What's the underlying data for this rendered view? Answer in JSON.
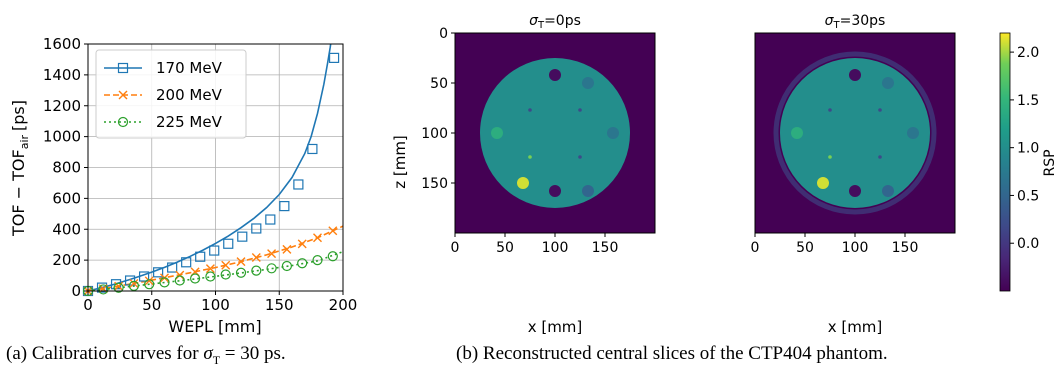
{
  "chart_data": [
    {
      "type": "line",
      "panel": "a",
      "xlabel": "WEPL [mm]",
      "ylabel_main": "TOF − TOF",
      "ylabel_sub": "air",
      "ylabel_unit": "[ps]",
      "xlim": [
        0,
        200
      ],
      "ylim": [
        0,
        1600
      ],
      "xticks": [
        0,
        50,
        100,
        150,
        200
      ],
      "yticks": [
        0,
        200,
        400,
        600,
        800,
        1000,
        1200,
        1400,
        1600
      ],
      "grid": true,
      "legend_position": "top-left",
      "series": [
        {
          "name": "170 MeV",
          "color": "#1f77b4",
          "line_style": "solid",
          "marker": "square",
          "curve_x": [
            0,
            10,
            20,
            30,
            40,
            50,
            60,
            70,
            80,
            90,
            100,
            110,
            120,
            130,
            140,
            150,
            160,
            170,
            175,
            180,
            185,
            188,
            190,
            192
          ],
          "curve_y": [
            0,
            20,
            42,
            67,
            94,
            122,
            153,
            187,
            224,
            264,
            308,
            356,
            410,
            470,
            540,
            625,
            735,
            890,
            1000,
            1150,
            1340,
            1480,
            1580,
            1700
          ],
          "marker_x": [
            0,
            11,
            22,
            33,
            44,
            55,
            66,
            77,
            88,
            99,
            110,
            121,
            132,
            143,
            154,
            165,
            176,
            193
          ],
          "marker_y": [
            0,
            22,
            44,
            68,
            94,
            121,
            152,
            186,
            222,
            262,
            306,
            352,
            405,
            463,
            550,
            690,
            920,
            1510
          ]
        },
        {
          "name": "200 MeV",
          "color": "#ff7f0e",
          "line_style": "dashed",
          "marker": "x",
          "curve_x": [
            0,
            20,
            40,
            60,
            80,
            100,
            120,
            140,
            160,
            180,
            200
          ],
          "curve_y": [
            0,
            26,
            55,
            86,
            118,
            152,
            190,
            234,
            285,
            345,
            420
          ],
          "marker_x": [
            0,
            12,
            24,
            36,
            48,
            60,
            72,
            84,
            96,
            108,
            120,
            132,
            144,
            156,
            168,
            180,
            192
          ],
          "marker_y": [
            0,
            15,
            31,
            49,
            66,
            85,
            103,
            124,
            145,
            167,
            190,
            217,
            242,
            270,
            305,
            345,
            390
          ]
        },
        {
          "name": "225 MeV",
          "color": "#2ca02c",
          "line_style": "dotted",
          "marker": "circle",
          "curve_x": [
            0,
            20,
            40,
            60,
            80,
            100,
            120,
            140,
            160,
            180,
            200
          ],
          "curve_y": [
            0,
            17,
            36,
            55,
            74,
            95,
            117,
            140,
            165,
            195,
            255
          ],
          "marker_x": [
            0,
            12,
            24,
            36,
            48,
            60,
            72,
            84,
            96,
            108,
            120,
            132,
            144,
            156,
            168,
            180,
            192
          ],
          "marker_y": [
            0,
            10,
            21,
            33,
            44,
            56,
            68,
            81,
            94,
            107,
            118,
            132,
            147,
            162,
            180,
            200,
            225
          ]
        }
      ]
    },
    {
      "type": "heatmap",
      "panel": "b",
      "colorbar_label": "RSP",
      "colorbar_ticks": [
        0.0,
        0.5,
        1.0,
        1.5,
        2.0
      ],
      "colorbar_tick_labels": [
        "0.0",
        "0.5",
        "1.0",
        "1.5",
        "2.0"
      ],
      "colorbar_range": [
        -0.5,
        2.2
      ],
      "colormap": "viridis",
      "images": [
        {
          "title_prefix": "σ",
          "title_sub": "T",
          "title_suffix": "=0ps",
          "xlabel": "x [mm]",
          "ylabel": "z [mm]",
          "xlim": [
            0,
            200
          ],
          "ylim": [
            200,
            0
          ],
          "xticks": [
            0,
            50,
            100,
            150
          ],
          "yticks": [
            0,
            50,
            100,
            150
          ],
          "background_rsp": -0.5,
          "phantom": {
            "cx": 100,
            "cz": 100,
            "r": 75,
            "rsp": 1.0
          },
          "inserts": [
            {
              "cx": 100,
              "cz": 42,
              "r": 6,
              "rsp": -0.4
            },
            {
              "cx": 133,
              "cz": 50,
              "r": 6,
              "rsp": 0.7
            },
            {
              "cx": 158,
              "cz": 100,
              "r": 6,
              "rsp": 0.7
            },
            {
              "cx": 133,
              "cz": 158,
              "r": 6,
              "rsp": 0.5
            },
            {
              "cx": 100,
              "cz": 158,
              "r": 6,
              "rsp": -0.4
            },
            {
              "cx": 68,
              "cz": 150,
              "r": 6,
              "rsp": 2.1
            },
            {
              "cx": 42,
              "cz": 100,
              "r": 6,
              "rsp": 1.4
            },
            {
              "cx": 75,
              "cz": 77,
              "r": 1.8,
              "rsp": 0.2
            },
            {
              "cx": 125,
              "cz": 77,
              "r": 1.8,
              "rsp": 0.2
            },
            {
              "cx": 125,
              "cz": 124,
              "r": 1.8,
              "rsp": 0.2
            },
            {
              "cx": 75,
              "cz": 124,
              "r": 1.8,
              "rsp": 1.9
            }
          ]
        },
        {
          "title_prefix": "σ",
          "title_sub": "T",
          "title_suffix": "=30ps",
          "xlabel": "x [mm]",
          "xlim": [
            0,
            200
          ],
          "xticks": [
            0,
            50,
            100,
            150
          ],
          "background_rsp": -0.5,
          "ring_artifact": true,
          "phantom": {
            "cx": 100,
            "cz": 100,
            "r": 75,
            "rsp": 1.0
          },
          "inserts": [
            {
              "cx": 100,
              "cz": 42,
              "r": 6,
              "rsp": -0.4
            },
            {
              "cx": 133,
              "cz": 50,
              "r": 6,
              "rsp": 0.7
            },
            {
              "cx": 158,
              "cz": 100,
              "r": 6,
              "rsp": 0.7
            },
            {
              "cx": 133,
              "cz": 158,
              "r": 6,
              "rsp": 0.5
            },
            {
              "cx": 100,
              "cz": 158,
              "r": 6,
              "rsp": -0.4
            },
            {
              "cx": 68,
              "cz": 150,
              "r": 6,
              "rsp": 2.1
            },
            {
              "cx": 42,
              "cz": 100,
              "r": 6,
              "rsp": 1.4
            },
            {
              "cx": 75,
              "cz": 77,
              "r": 1.8,
              "rsp": 0.2
            },
            {
              "cx": 125,
              "cz": 77,
              "r": 1.8,
              "rsp": 0.2
            },
            {
              "cx": 125,
              "cz": 124,
              "r": 1.8,
              "rsp": 0.2
            },
            {
              "cx": 75,
              "cz": 124,
              "r": 1.8,
              "rsp": 1.9
            }
          ]
        }
      ]
    }
  ],
  "captions": {
    "a_prefix": "(a) Calibration curves for ",
    "a_sigma": "σ",
    "a_sub": "T",
    "a_suffix": " = 30 ps.",
    "b": "(b) Reconstructed central slices of the CTP404 phantom."
  }
}
